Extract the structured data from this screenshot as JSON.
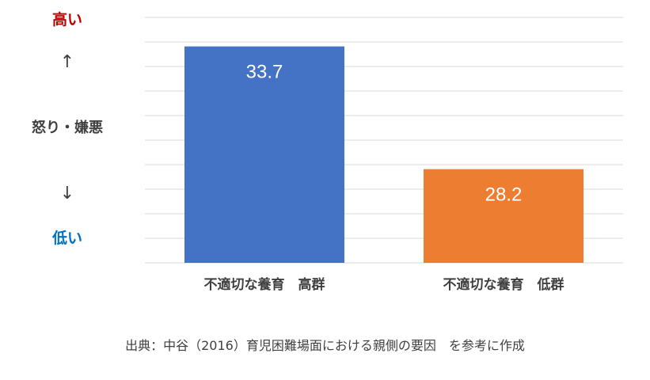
{
  "left_axis": {
    "high_label": "高い",
    "up_arrow": "↑",
    "label": "怒り・嫌悪",
    "down_arrow": "↓",
    "low_label": "低い"
  },
  "colors": {
    "high_label": "#c00000",
    "low_label": "#0070c0",
    "grid": "#d9d9d9",
    "bar_text": "#ffffff",
    "category_text": "#404040"
  },
  "chart_data": {
    "type": "bar",
    "categories": [
      "不適切な養育　高群",
      "不適切な養育　低群"
    ],
    "values": [
      33.7,
      28.2
    ],
    "value_labels": [
      "33.7",
      "28.2"
    ],
    "colors": [
      "#4472c4",
      "#ed7d31"
    ],
    "ylim": [
      24,
      35
    ],
    "grid": true,
    "gridline_count": 11
  },
  "source": "出典：中谷（2016）育児困難場面における親側の要因　を参考に作成"
}
